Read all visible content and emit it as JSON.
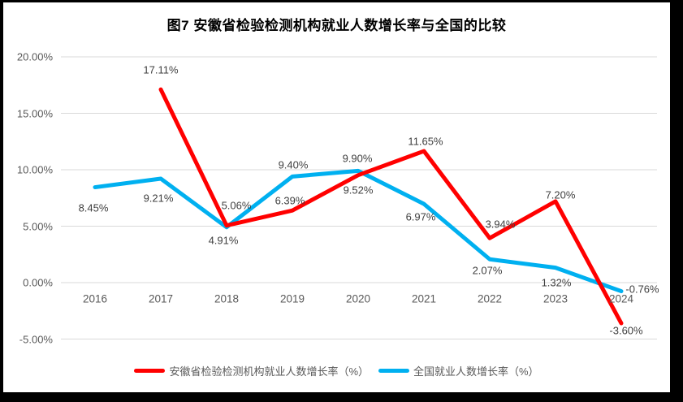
{
  "frame": {
    "background": "#000000",
    "surface": "#ffffff"
  },
  "chart_data": {
    "type": "line",
    "title": "图7 安徽省检验检测机构就业人数增长率与全国的比较",
    "categories": [
      "2016",
      "2017",
      "2018",
      "2019",
      "2020",
      "2021",
      "2022",
      "2023",
      "2024"
    ],
    "series": [
      {
        "name": "安徽省检验检测机构就业人数增长率（%）",
        "color": "#FF0000",
        "stroke_width": 5,
        "values": [
          null,
          17.11,
          5.06,
          6.39,
          9.52,
          11.65,
          3.94,
          7.2,
          -3.6
        ],
        "labels": [
          "",
          "17.11%",
          "5.06%",
          "6.39%",
          "9.52%",
          "11.65%",
          "3.94%",
          "7.20%",
          "-3.60%"
        ],
        "label_offsets": [
          [
            0,
            0
          ],
          [
            0,
            -24
          ],
          [
            12,
            -25
          ],
          [
            -3,
            -12
          ],
          [
            0,
            18
          ],
          [
            2,
            -12
          ],
          [
            13,
            -17
          ],
          [
            6,
            -8
          ],
          [
            6,
            9
          ]
        ]
      },
      {
        "name": "全国就业人数增长率（%）",
        "color": "#00B0F0",
        "stroke_width": 5,
        "values": [
          8.45,
          9.21,
          4.91,
          9.4,
          9.9,
          6.97,
          2.07,
          1.32,
          -0.76
        ],
        "labels": [
          "8.45%",
          "9.21%",
          "4.91%",
          "9.40%",
          "9.90%",
          "6.97%",
          "2.07%",
          "1.32%",
          "-0.76%"
        ],
        "label_offsets": [
          [
            -2,
            25
          ],
          [
            -3,
            24
          ],
          [
            -4,
            16
          ],
          [
            1,
            -14
          ],
          [
            -1,
            -15
          ],
          [
            -4,
            16
          ],
          [
            -3,
            14
          ],
          [
            1,
            18
          ],
          [
            26,
            -3
          ]
        ]
      }
    ],
    "y_axis": {
      "tick_labels": [
        "20.00%",
        "15.00%",
        "10.00%",
        "5.00%",
        "0.00%",
        "-5.00%"
      ],
      "tick_values": [
        20,
        15,
        10,
        5,
        0,
        -5
      ]
    },
    "ylim": [
      -5,
      20
    ],
    "grid": true,
    "gridline_color": "#D9D9D9",
    "legend_position": "bottom",
    "draw_order": [
      1,
      0
    ]
  },
  "text_colors": {
    "axis": "#595959",
    "data_label": "#3f3f3f",
    "title": "#000000",
    "legend": "#595959"
  }
}
